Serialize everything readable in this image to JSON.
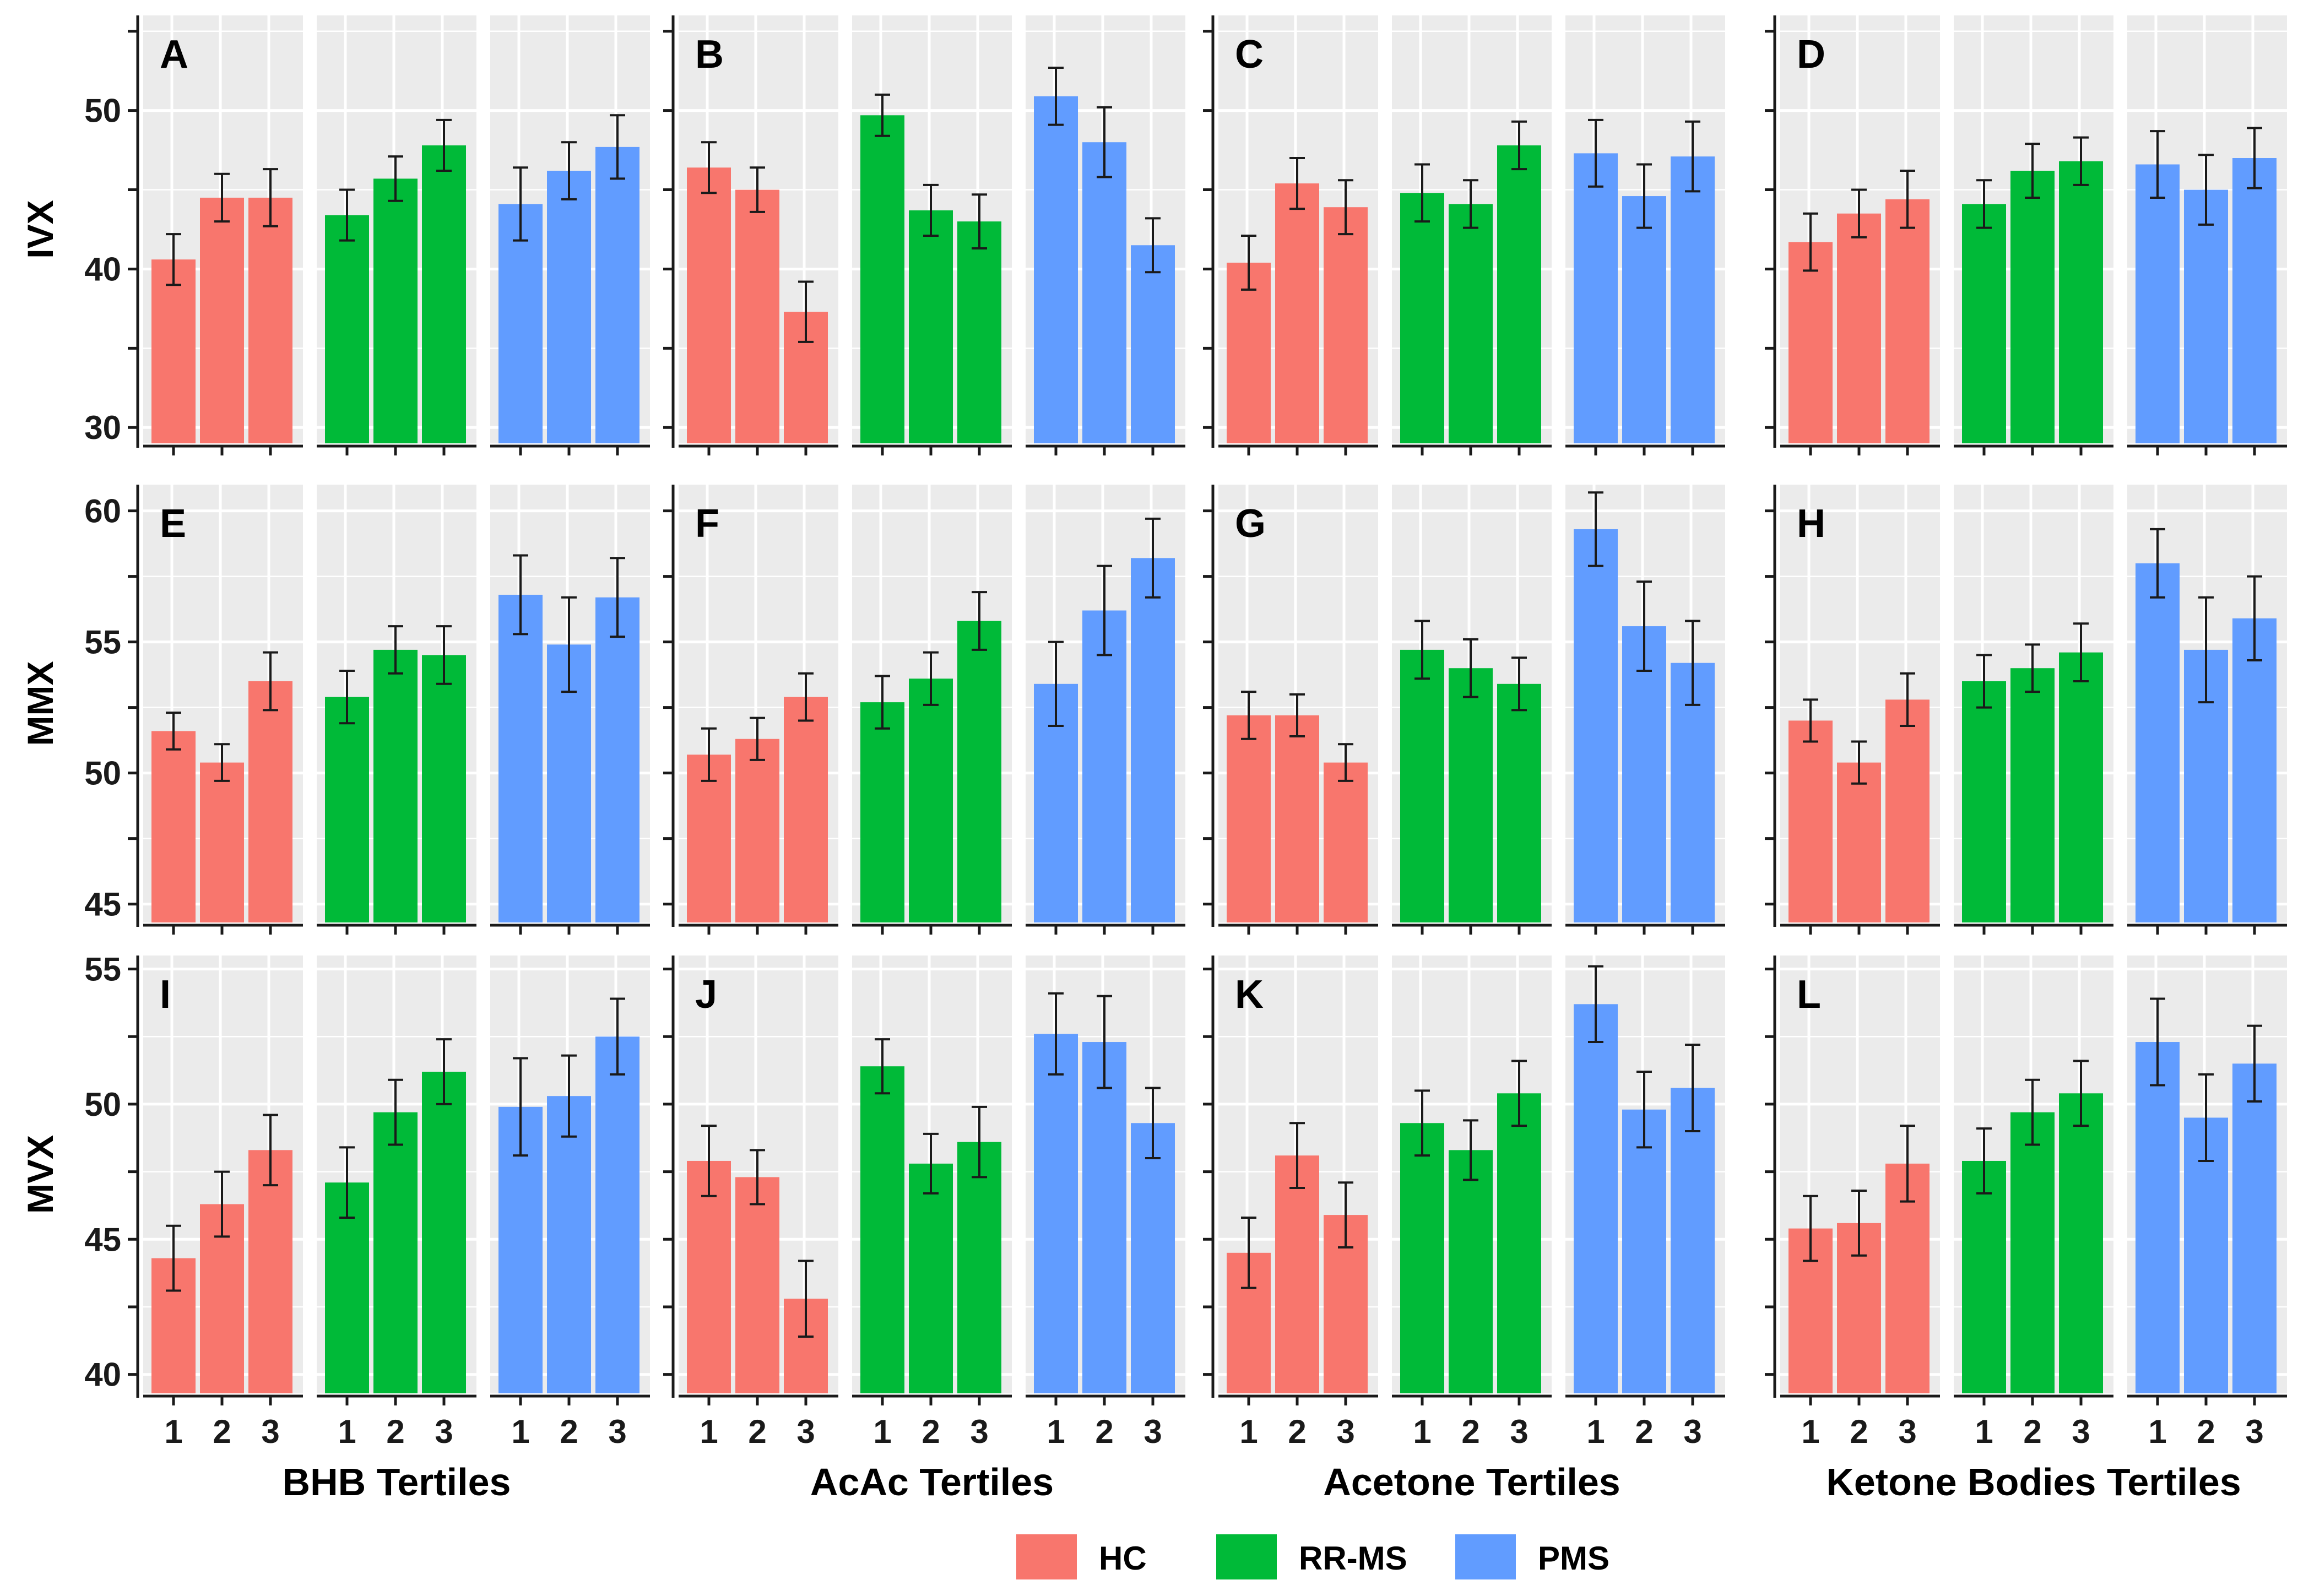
{
  "chart_data": {
    "type": "bar",
    "layout": "grid of panels: rows = outcome measures, columns = ketone tertile groupings, each split into HC / RR-MS / PMS facets",
    "categories": [
      "1",
      "2",
      "3"
    ],
    "groups": [
      {
        "name": "HC",
        "color": "#F8766D"
      },
      {
        "name": "RR-MS",
        "color": "#00BA38"
      },
      {
        "name": "PMS",
        "color": "#619CFF"
      }
    ],
    "legend": {
      "position": "bottom",
      "entries": [
        "HC",
        "RR-MS",
        "PMS"
      ]
    },
    "columns": [
      "BHB Tertiles",
      "AcAc Tertiles",
      "Acetone Tertiles",
      "Ketone Bodies Tertiles"
    ],
    "rows": [
      {
        "ylabel": "IVX",
        "ylim": [
          29,
          56
        ],
        "yticks": [
          30,
          40,
          50
        ],
        "panel_letters": [
          "A",
          "B",
          "C",
          "D"
        ]
      },
      {
        "ylabel": "MMX",
        "ylim": [
          44.3,
          61
        ],
        "yticks": [
          45,
          50,
          55,
          60
        ],
        "panel_letters": [
          "E",
          "F",
          "G",
          "H"
        ]
      },
      {
        "ylabel": "MVX",
        "ylim": [
          39.3,
          55.5
        ],
        "yticks": [
          40,
          45,
          50,
          55
        ],
        "panel_letters": [
          "I",
          "J",
          "K",
          "L"
        ]
      }
    ],
    "values": [
      [
        [
          [
            40.6,
            42.2,
            39.0
          ],
          [
            44.5,
            46.0,
            43.0
          ],
          [
            44.5,
            46.3,
            42.7
          ]
        ],
        [
          [
            43.4,
            45.0,
            41.8
          ],
          [
            45.7,
            47.1,
            44.3
          ],
          [
            47.8,
            49.4,
            46.2
          ]
        ],
        [
          [
            44.1,
            46.4,
            41.8
          ],
          [
            46.2,
            48.0,
            44.4
          ],
          [
            47.7,
            49.7,
            45.7
          ]
        ]
      ],
      [
        [
          [
            46.4,
            48.0,
            44.8
          ],
          [
            45.0,
            46.4,
            43.6
          ],
          [
            37.3,
            39.2,
            35.4
          ]
        ],
        [
          [
            49.7,
            51.0,
            48.4
          ],
          [
            43.7,
            45.3,
            42.1
          ],
          [
            43.0,
            44.7,
            41.3
          ]
        ],
        [
          [
            50.9,
            52.7,
            49.1
          ],
          [
            48.0,
            50.2,
            45.8
          ],
          [
            41.5,
            43.2,
            39.8
          ]
        ]
      ],
      [
        [
          [
            40.4,
            42.1,
            38.7
          ],
          [
            45.4,
            47.0,
            43.8
          ],
          [
            43.9,
            45.6,
            42.2
          ]
        ],
        [
          [
            44.8,
            46.6,
            43.0
          ],
          [
            44.1,
            45.6,
            42.6
          ],
          [
            47.8,
            49.3,
            46.3
          ]
        ],
        [
          [
            47.3,
            49.4,
            45.2
          ],
          [
            44.6,
            46.6,
            42.6
          ],
          [
            47.1,
            49.3,
            44.9
          ]
        ]
      ],
      [
        [
          [
            41.7,
            43.5,
            39.9
          ],
          [
            43.5,
            45.0,
            42.0
          ],
          [
            44.4,
            46.2,
            42.6
          ]
        ],
        [
          [
            44.1,
            45.6,
            42.6
          ],
          [
            46.2,
            47.9,
            44.5
          ],
          [
            46.8,
            48.3,
            45.3
          ]
        ],
        [
          [
            46.6,
            48.7,
            44.5
          ],
          [
            45.0,
            47.2,
            42.8
          ],
          [
            47.0,
            48.9,
            45.1
          ]
        ]
      ],
      [
        [
          [
            51.6,
            52.3,
            50.9
          ],
          [
            50.4,
            51.1,
            49.7
          ],
          [
            53.5,
            54.6,
            52.4
          ]
        ],
        [
          [
            52.9,
            53.9,
            51.9
          ],
          [
            54.7,
            55.6,
            53.8
          ],
          [
            54.5,
            55.6,
            53.4
          ]
        ],
        [
          [
            56.8,
            58.3,
            55.3
          ],
          [
            54.9,
            56.7,
            53.1
          ],
          [
            56.7,
            58.2,
            55.2
          ]
        ]
      ],
      [
        [
          [
            50.7,
            51.7,
            49.7
          ],
          [
            51.3,
            52.1,
            50.5
          ],
          [
            52.9,
            53.8,
            52.0
          ]
        ],
        [
          [
            52.7,
            53.7,
            51.7
          ],
          [
            53.6,
            54.6,
            52.6
          ],
          [
            55.8,
            56.9,
            54.7
          ]
        ],
        [
          [
            53.4,
            55.0,
            51.8
          ],
          [
            56.2,
            57.9,
            54.5
          ],
          [
            58.2,
            59.7,
            56.7
          ]
        ]
      ],
      [
        [
          [
            52.2,
            53.1,
            51.3
          ],
          [
            52.2,
            53.0,
            51.4
          ],
          [
            50.4,
            51.1,
            49.7
          ]
        ],
        [
          [
            54.7,
            55.8,
            53.6
          ],
          [
            54.0,
            55.1,
            52.9
          ],
          [
            53.4,
            54.4,
            52.4
          ]
        ],
        [
          [
            59.3,
            60.7,
            57.9
          ],
          [
            55.6,
            57.3,
            53.9
          ],
          [
            54.2,
            55.8,
            52.6
          ]
        ]
      ],
      [
        [
          [
            52.0,
            52.8,
            51.2
          ],
          [
            50.4,
            51.2,
            49.6
          ],
          [
            52.8,
            53.8,
            51.8
          ]
        ],
        [
          [
            53.5,
            54.5,
            52.5
          ],
          [
            54.0,
            54.9,
            53.1
          ],
          [
            54.6,
            55.7,
            53.5
          ]
        ],
        [
          [
            58.0,
            59.3,
            56.7
          ],
          [
            54.7,
            56.7,
            52.7
          ],
          [
            55.9,
            57.5,
            54.3
          ]
        ]
      ],
      [
        [
          [
            44.3,
            45.5,
            43.1
          ],
          [
            46.3,
            47.5,
            45.1
          ],
          [
            48.3,
            49.6,
            47.0
          ]
        ],
        [
          [
            47.1,
            48.4,
            45.8
          ],
          [
            49.7,
            50.9,
            48.5
          ],
          [
            51.2,
            52.4,
            50.0
          ]
        ],
        [
          [
            49.9,
            51.7,
            48.1
          ],
          [
            50.3,
            51.8,
            48.8
          ],
          [
            52.5,
            53.9,
            51.1
          ]
        ]
      ],
      [
        [
          [
            47.9,
            49.2,
            46.6
          ],
          [
            47.3,
            48.3,
            46.3
          ],
          [
            42.8,
            44.2,
            41.4
          ]
        ],
        [
          [
            51.4,
            52.4,
            50.4
          ],
          [
            47.8,
            48.9,
            46.7
          ],
          [
            48.6,
            49.9,
            47.3
          ]
        ],
        [
          [
            52.6,
            54.1,
            51.1
          ],
          [
            52.3,
            54.0,
            50.6
          ],
          [
            49.3,
            50.6,
            48.0
          ]
        ]
      ],
      [
        [
          [
            44.5,
            45.8,
            43.2
          ],
          [
            48.1,
            49.3,
            46.9
          ],
          [
            45.9,
            47.1,
            44.7
          ]
        ],
        [
          [
            49.3,
            50.5,
            48.1
          ],
          [
            48.3,
            49.4,
            47.2
          ],
          [
            50.4,
            51.6,
            49.2
          ]
        ],
        [
          [
            53.7,
            55.1,
            52.3
          ],
          [
            49.8,
            51.2,
            48.4
          ],
          [
            50.6,
            52.2,
            49.0
          ]
        ]
      ],
      [
        [
          [
            45.4,
            46.6,
            44.2
          ],
          [
            45.6,
            46.8,
            44.4
          ],
          [
            47.8,
            49.2,
            46.4
          ]
        ],
        [
          [
            47.9,
            49.1,
            46.7
          ],
          [
            49.7,
            50.9,
            48.5
          ],
          [
            50.4,
            51.6,
            49.2
          ]
        ],
        [
          [
            52.3,
            53.9,
            50.7
          ],
          [
            49.5,
            51.1,
            47.9
          ],
          [
            51.5,
            52.9,
            50.1
          ]
        ]
      ]
    ],
    "value_format": "each bar = [mean, upper error, lower error]; values indexed [row*4 + column][group][tertile]"
  }
}
